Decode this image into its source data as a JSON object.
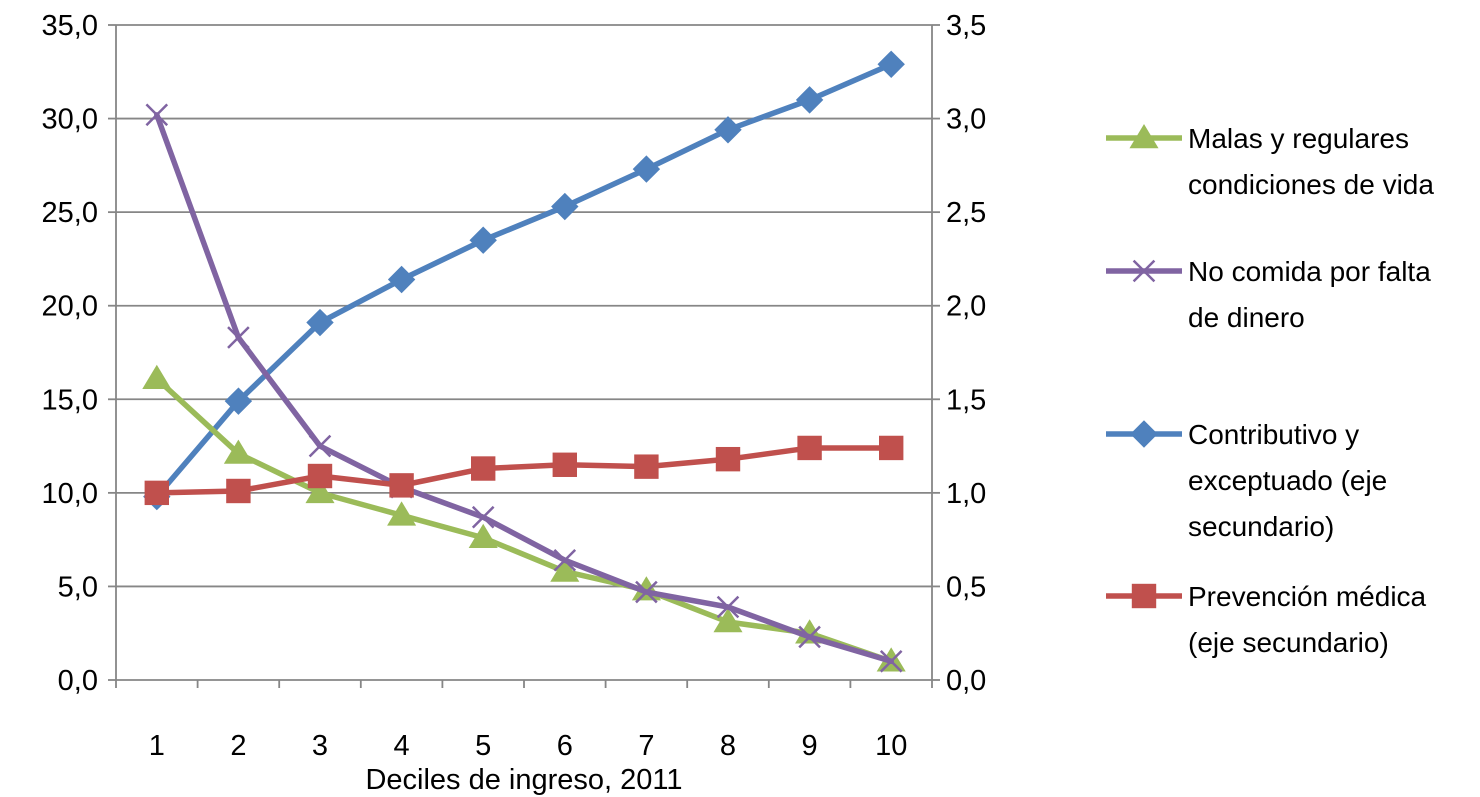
{
  "chart_data": {
    "type": "line",
    "xlabel": "Deciles de ingreso, 2011",
    "categories": [
      "1",
      "2",
      "3",
      "4",
      "5",
      "6",
      "7",
      "8",
      "9",
      "10"
    ],
    "y_left": {
      "range": [
        0,
        35
      ],
      "ticks": [
        "0,0",
        "5,0",
        "10,0",
        "15,0",
        "20,0",
        "25,0",
        "30,0",
        "35,0"
      ]
    },
    "y_right": {
      "range": [
        0,
        3.5
      ],
      "ticks": [
        "0,0",
        "0,5",
        "1,0",
        "1,5",
        "2,0",
        "2,5",
        "3,0",
        "3,5"
      ]
    },
    "grid": true,
    "legend_position": "right",
    "series": [
      {
        "key": "malas",
        "name_lines": [
          "Malas y regulares",
          "condiciones de vida"
        ],
        "axis": "left",
        "color": "#9BBB59",
        "marker": "triangle",
        "values": [
          16.1,
          12.1,
          10.0,
          8.8,
          7.6,
          5.8,
          4.8,
          3.1,
          2.5,
          1.0
        ]
      },
      {
        "key": "no_comida",
        "name_lines": [
          "No comida por falta",
          "de dinero"
        ],
        "axis": "left",
        "color": "#8064A2",
        "marker": "x",
        "values": [
          30.2,
          18.3,
          12.5,
          10.3,
          8.7,
          6.4,
          4.7,
          3.9,
          2.3,
          1.0
        ]
      },
      {
        "key": "contributivo",
        "name_lines": [
          "Contributivo y",
          "exceptuado (eje",
          "secundario)"
        ],
        "axis": "right",
        "color": "#4F81BD",
        "marker": "diamond",
        "values": [
          0.98,
          1.49,
          1.91,
          2.14,
          2.35,
          2.53,
          2.73,
          2.94,
          3.1,
          3.29
        ]
      },
      {
        "key": "prevencion",
        "name_lines": [
          "Prevención médica",
          "(eje secundario)"
        ],
        "axis": "right",
        "color": "#C0504D",
        "marker": "square",
        "values": [
          1.0,
          1.01,
          1.09,
          1.04,
          1.13,
          1.15,
          1.14,
          1.18,
          1.24,
          1.24
        ]
      }
    ]
  }
}
